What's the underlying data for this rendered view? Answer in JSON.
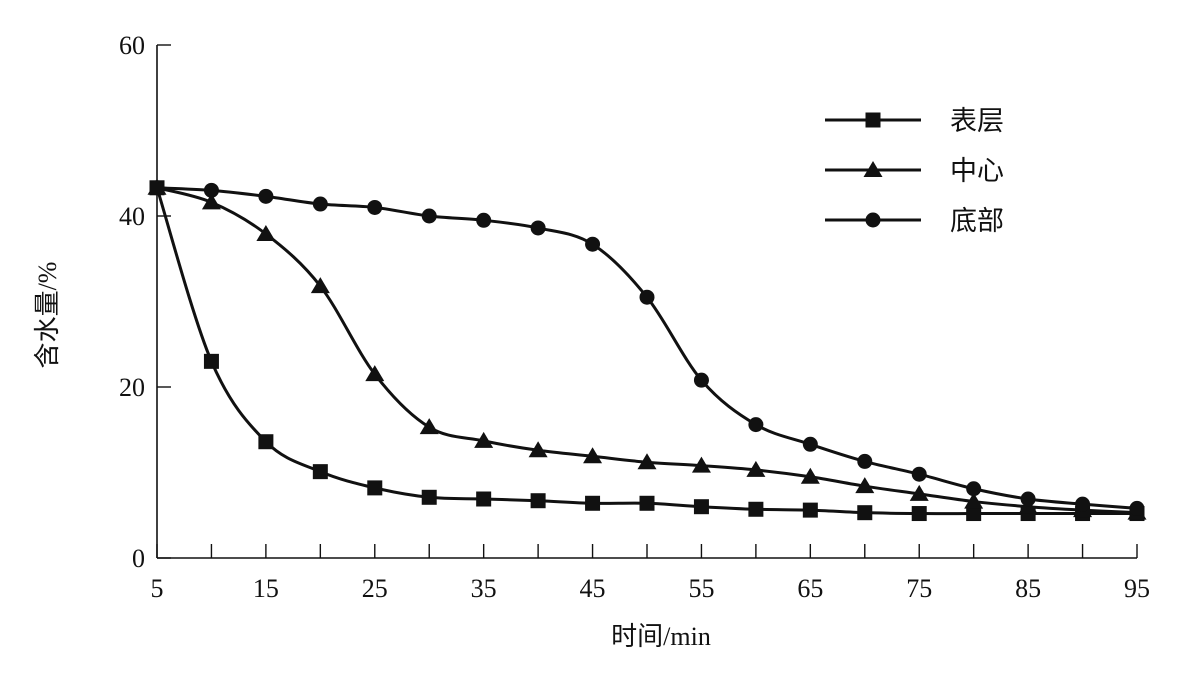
{
  "chart_data": {
    "type": "line",
    "title": "",
    "xlabel": "时间/min",
    "ylabel": "含水量/%",
    "xlim": [
      5,
      95
    ],
    "ylim": [
      0,
      60
    ],
    "x_tick_labels": [
      "5",
      "15",
      "25",
      "35",
      "45",
      "55",
      "65",
      "75",
      "85",
      "95"
    ],
    "x_minor_ticks": [
      5,
      10,
      15,
      20,
      25,
      30,
      35,
      40,
      45,
      50,
      55,
      60,
      65,
      70,
      75,
      80,
      85,
      90,
      95
    ],
    "y_tick_labels": [
      "0",
      "20",
      "40",
      "60"
    ],
    "grid": false,
    "legend_position": "upper right",
    "x": [
      5,
      10,
      15,
      20,
      25,
      30,
      35,
      40,
      45,
      50,
      55,
      60,
      65,
      70,
      75,
      80,
      85,
      90,
      95
    ],
    "series": [
      {
        "name": "表层",
        "marker": "square",
        "values": [
          43.3,
          23.0,
          13.6,
          10.1,
          8.2,
          7.1,
          6.9,
          6.7,
          6.4,
          6.4,
          6.0,
          5.7,
          5.6,
          5.3,
          5.2,
          5.2,
          5.2,
          5.2,
          5.2
        ]
      },
      {
        "name": "中心",
        "marker": "triangle",
        "values": [
          43.3,
          41.6,
          37.9,
          31.8,
          21.5,
          15.3,
          13.7,
          12.6,
          11.9,
          11.2,
          10.8,
          10.3,
          9.5,
          8.4,
          7.5,
          6.6,
          6.0,
          5.6,
          5.3
        ]
      },
      {
        "name": "底部",
        "marker": "circle",
        "values": [
          43.3,
          43.0,
          42.3,
          41.4,
          41.0,
          40.0,
          39.5,
          38.6,
          36.7,
          30.5,
          20.8,
          15.6,
          13.3,
          11.3,
          9.8,
          8.1,
          6.9,
          6.3,
          5.8
        ]
      }
    ]
  },
  "legend": {
    "items": [
      {
        "label": "表层",
        "marker": "square"
      },
      {
        "label": "中心",
        "marker": "triangle"
      },
      {
        "label": "底部",
        "marker": "circle"
      }
    ]
  },
  "axes": {
    "x_title": "时间/min",
    "y_title": "含水量/%"
  },
  "colors": {
    "line": "#111111",
    "background": "#ffffff"
  }
}
